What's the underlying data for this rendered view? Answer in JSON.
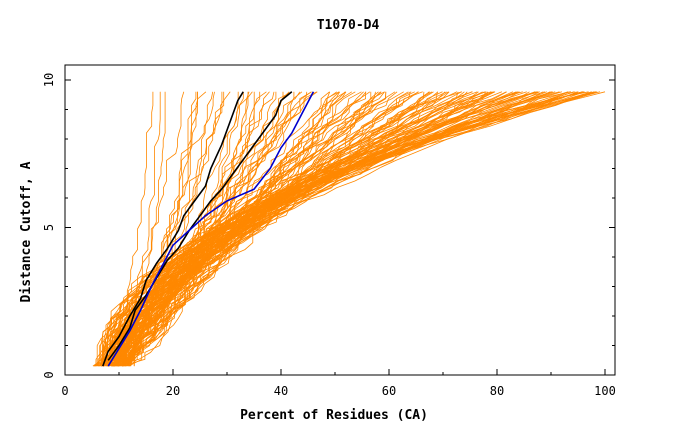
{
  "chart_data": {
    "type": "line",
    "title": "T1070-D4",
    "xlabel": "Percent of Residues (CA)",
    "ylabel": "Distance Cutoff, A",
    "xlim": [
      0,
      100
    ],
    "ylim": [
      0,
      10
    ],
    "x_ticks": [
      0,
      20,
      40,
      60,
      80,
      100
    ],
    "y_ticks": [
      0,
      5,
      10
    ],
    "grid": false,
    "colors": {
      "background_models": "#ff8800",
      "highlight_black": "#000000",
      "highlight_blue": "#0000cc"
    },
    "series": [
      {
        "color": "#000000",
        "x": [
          7,
          8,
          10,
          12,
          14,
          15,
          17,
          19,
          20,
          21,
          22,
          24,
          26,
          27,
          28,
          29,
          30,
          31,
          32,
          33
        ],
        "y": [
          0.3,
          0.8,
          1.3,
          2.0,
          2.6,
          3.2,
          3.8,
          4.3,
          4.6,
          4.9,
          5.4,
          5.9,
          6.4,
          7.0,
          7.4,
          7.8,
          8.3,
          8.8,
          9.3,
          9.6
        ]
      },
      {
        "color": "#000000",
        "x": [
          8,
          10,
          12,
          13,
          15,
          17,
          19,
          21,
          23,
          25,
          27,
          29,
          31,
          33,
          35,
          37,
          39,
          40,
          42
        ],
        "y": [
          0.5,
          1.0,
          1.6,
          2.2,
          2.7,
          3.3,
          3.9,
          4.3,
          4.9,
          5.4,
          5.9,
          6.3,
          6.8,
          7.3,
          7.8,
          8.3,
          8.8,
          9.3,
          9.6
        ]
      },
      {
        "color": "#0000cc",
        "x": [
          8,
          10,
          12,
          14,
          16,
          18,
          20,
          23,
          26,
          30,
          35,
          38,
          40,
          42,
          44,
          46
        ],
        "y": [
          0.3,
          0.9,
          1.5,
          2.2,
          3.0,
          3.7,
          4.4,
          4.9,
          5.4,
          5.9,
          6.3,
          7.0,
          7.7,
          8.2,
          8.9,
          9.6
        ]
      }
    ]
  }
}
